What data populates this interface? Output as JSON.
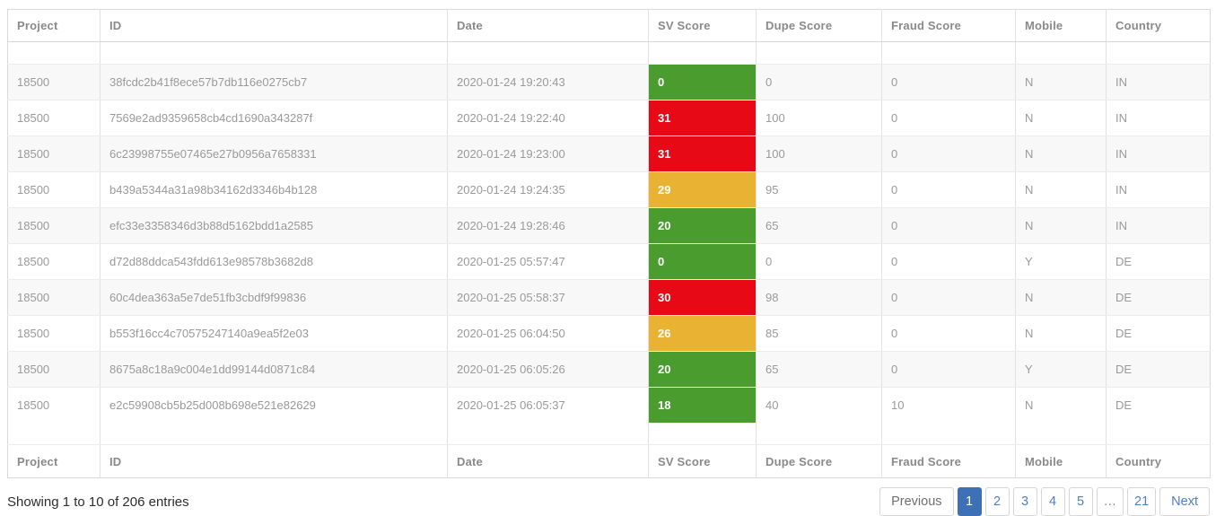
{
  "table": {
    "columns": [
      {
        "key": "project",
        "label": "Project"
      },
      {
        "key": "id",
        "label": "ID"
      },
      {
        "key": "date",
        "label": "Date"
      },
      {
        "key": "sv_score",
        "label": "SV Score"
      },
      {
        "key": "dupe_score",
        "label": "Dupe Score"
      },
      {
        "key": "fraud_score",
        "label": "Fraud Score"
      },
      {
        "key": "mobile",
        "label": "Mobile"
      },
      {
        "key": "country",
        "label": "Country"
      }
    ],
    "rows": [
      {
        "project": "18500",
        "id": "38fcdc2b41f8ece57b7db116e0275cb7",
        "date": "2020-01-24 19:20:43",
        "sv_score": "0",
        "sv_level": "green",
        "dupe_score": "0",
        "fraud_score": "0",
        "mobile": "N",
        "country": "IN"
      },
      {
        "project": "18500",
        "id": "7569e2ad9359658cb4cd1690a343287f",
        "date": "2020-01-24 19:22:40",
        "sv_score": "31",
        "sv_level": "red",
        "dupe_score": "100",
        "fraud_score": "0",
        "mobile": "N",
        "country": "IN"
      },
      {
        "project": "18500",
        "id": "6c23998755e07465e27b0956a7658331",
        "date": "2020-01-24 19:23:00",
        "sv_score": "31",
        "sv_level": "red",
        "dupe_score": "100",
        "fraud_score": "0",
        "mobile": "N",
        "country": "IN"
      },
      {
        "project": "18500",
        "id": "b439a5344a31a98b34162d3346b4b128",
        "date": "2020-01-24 19:24:35",
        "sv_score": "29",
        "sv_level": "amber",
        "dupe_score": "95",
        "fraud_score": "0",
        "mobile": "N",
        "country": "IN"
      },
      {
        "project": "18500",
        "id": "efc33e3358346d3b88d5162bdd1a2585",
        "date": "2020-01-24 19:28:46",
        "sv_score": "20",
        "sv_level": "green",
        "dupe_score": "65",
        "fraud_score": "0",
        "mobile": "N",
        "country": "IN"
      },
      {
        "project": "18500",
        "id": "d72d88ddca543fdd613e98578b3682d8",
        "date": "2020-01-25 05:57:47",
        "sv_score": "0",
        "sv_level": "green",
        "dupe_score": "0",
        "fraud_score": "0",
        "mobile": "Y",
        "country": "DE"
      },
      {
        "project": "18500",
        "id": "60c4dea363a5e7de51fb3cbdf9f99836",
        "date": "2020-01-25 05:58:37",
        "sv_score": "30",
        "sv_level": "red",
        "dupe_score": "98",
        "fraud_score": "0",
        "mobile": "N",
        "country": "DE"
      },
      {
        "project": "18500",
        "id": "b553f16cc4c70575247140a9ea5f2e03",
        "date": "2020-01-25 06:04:50",
        "sv_score": "26",
        "sv_level": "amber",
        "dupe_score": "85",
        "fraud_score": "0",
        "mobile": "N",
        "country": "DE"
      },
      {
        "project": "18500",
        "id": "8675a8c18a9c004e1dd99144d0871c84",
        "date": "2020-01-25 06:05:26",
        "sv_score": "20",
        "sv_level": "green",
        "dupe_score": "65",
        "fraud_score": "0",
        "mobile": "Y",
        "country": "DE"
      },
      {
        "project": "18500",
        "id": "e2c59908cb5b25d008b698e521e82629",
        "date": "2020-01-25 06:05:37",
        "sv_score": "18",
        "sv_level": "green",
        "dupe_score": "40",
        "fraud_score": "10",
        "mobile": "N",
        "country": "DE"
      }
    ]
  },
  "footer": {
    "summary": "Showing 1 to 10 of 206 entries"
  },
  "pagination": {
    "previous_label": "Previous",
    "pages": [
      "1",
      "2",
      "3",
      "4",
      "5",
      "…",
      "21"
    ],
    "active_page": "1",
    "next_label": "Next"
  },
  "colors": {
    "sv_green": "#4a9c2f",
    "sv_red": "#e80916",
    "sv_amber": "#eab233",
    "active_page_bg": "#3e70b7",
    "link_blue": "#4d7fc4"
  }
}
